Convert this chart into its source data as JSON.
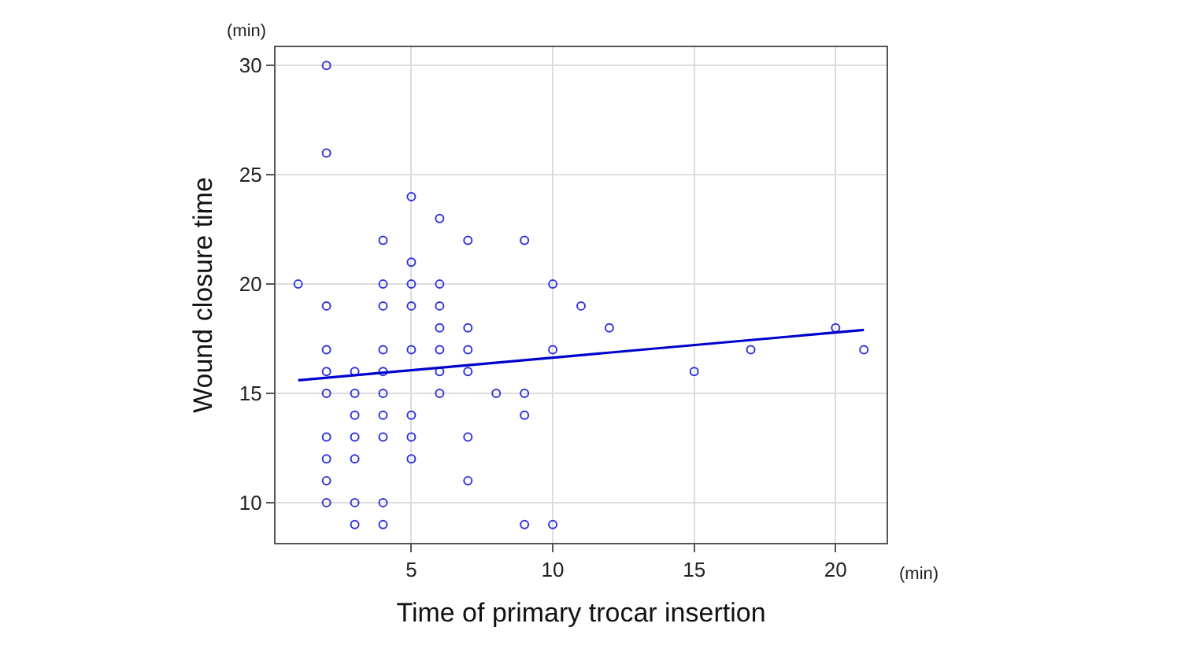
{
  "chart_data": {
    "type": "scatter",
    "xlabel": "Time of primary trocar insertion",
    "ylabel": "Wound closure time",
    "annotations": [
      "(min)",
      "(min)"
    ],
    "xlim": [
      0.2,
      21.8
    ],
    "xticks": [
      5,
      10,
      15,
      20
    ],
    "ylim": [
      8.16,
      30.84
    ],
    "yticks": [
      10,
      15,
      20,
      25,
      30
    ],
    "grid": true,
    "marker": "circle",
    "series": [
      {
        "color": "#3333dd",
        "x": [
          1,
          2,
          2,
          2,
          2,
          2,
          2,
          2,
          2,
          2,
          2,
          3,
          3,
          3,
          3,
          3,
          3,
          3,
          4,
          4,
          4,
          4,
          4,
          4,
          4,
          4,
          4,
          4,
          5,
          5,
          5,
          5,
          5,
          5,
          5,
          5,
          6,
          6,
          6,
          6,
          6,
          6,
          6,
          7,
          7,
          7,
          7,
          7,
          7,
          8,
          9,
          9,
          9,
          9,
          10,
          10,
          10,
          11,
          12,
          15,
          17,
          20,
          21
        ],
        "values": [
          20,
          30,
          26,
          19,
          17,
          16,
          15,
          13,
          12,
          11,
          10,
          16,
          15,
          14,
          13,
          12,
          10,
          9,
          22,
          20,
          19,
          17,
          16,
          15,
          14,
          13,
          10,
          9,
          24,
          21,
          20,
          19,
          17,
          14,
          13,
          12,
          23,
          20,
          19,
          18,
          17,
          16,
          15,
          22,
          18,
          17,
          16,
          13,
          11,
          15,
          22,
          15,
          14,
          9,
          20,
          17,
          9,
          19,
          18,
          16,
          17,
          18,
          17
        ]
      },
      {
        "type": "line",
        "marker": "none",
        "color": "#0000cc",
        "x": [
          1,
          21
        ],
        "values": [
          15.6,
          17.9
        ]
      }
    ]
  }
}
